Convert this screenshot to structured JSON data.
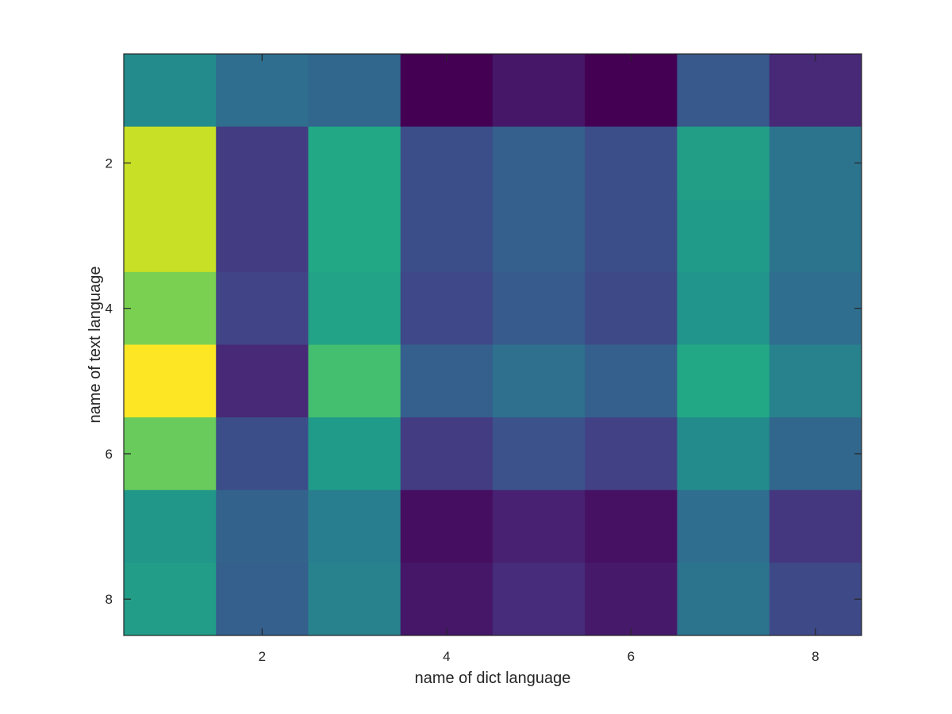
{
  "chart_data": {
    "type": "heatmap",
    "title": "",
    "xlabel": "name of dict language",
    "ylabel": "name of text language",
    "x": [
      1,
      2,
      3,
      4,
      5,
      6,
      7,
      8
    ],
    "y": [
      1,
      2,
      3,
      4,
      5,
      6,
      7,
      8
    ],
    "xlim": [
      0.5,
      8.5
    ],
    "ylim": [
      0.5,
      8.5
    ],
    "y_direction": "reverse",
    "x_ticks": [
      2,
      4,
      6,
      8
    ],
    "y_ticks": [
      2,
      4,
      6,
      8
    ],
    "colormap": "viridis",
    "grid": false,
    "values": [
      [
        0.6,
        0.45,
        0.42,
        0.0,
        0.08,
        0.0,
        0.35,
        0.15
      ],
      [
        0.95,
        0.22,
        0.75,
        0.3,
        0.38,
        0.3,
        0.7,
        0.48
      ],
      [
        0.95,
        0.22,
        0.75,
        0.3,
        0.38,
        0.3,
        0.68,
        0.48
      ],
      [
        0.88,
        0.25,
        0.72,
        0.27,
        0.36,
        0.28,
        0.65,
        0.45
      ],
      [
        1.0,
        0.15,
        0.82,
        0.38,
        0.46,
        0.38,
        0.75,
        0.55
      ],
      [
        0.86,
        0.3,
        0.68,
        0.22,
        0.32,
        0.24,
        0.6,
        0.42
      ],
      [
        0.66,
        0.4,
        0.53,
        0.05,
        0.12,
        0.06,
        0.45,
        0.2
      ],
      [
        0.69,
        0.38,
        0.55,
        0.08,
        0.16,
        0.09,
        0.48,
        0.28
      ]
    ]
  }
}
